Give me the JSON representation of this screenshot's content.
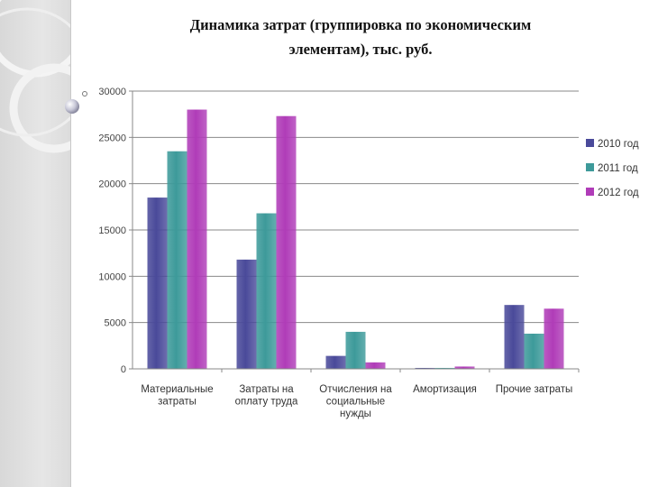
{
  "slide": {
    "title_line1": "Динамика затрат (группировка по экономическим",
    "title_line2": "элементам), тыс. руб."
  },
  "chart_data": {
    "type": "bar",
    "title": "Динамика затрат (группировка по экономическим элементам), тыс. руб.",
    "categories": [
      [
        "Материальные",
        "затраты"
      ],
      [
        "Затраты на",
        "оплату труда"
      ],
      [
        "Отчисления на",
        "социальные",
        "нужды"
      ],
      [
        "Амортизация"
      ],
      [
        "Прочие затраты"
      ]
    ],
    "series": [
      {
        "name": "2010 год",
        "color": "#4a4a9a",
        "values": [
          18500,
          11800,
          1400,
          100,
          6900
        ]
      },
      {
        "name": "2011 год",
        "color": "#3d9a9a",
        "values": [
          23500,
          16800,
          4000,
          100,
          3800
        ]
      },
      {
        "name": "2012 год",
        "color": "#b03cb8",
        "values": [
          28000,
          27300,
          700,
          250,
          6500
        ]
      }
    ],
    "y_ticks": [
      "0",
      "5000",
      "10000",
      "15000",
      "20000",
      "25000",
      "30000"
    ],
    "ylim": [
      0,
      30000
    ],
    "grid": true,
    "legend": "right"
  }
}
